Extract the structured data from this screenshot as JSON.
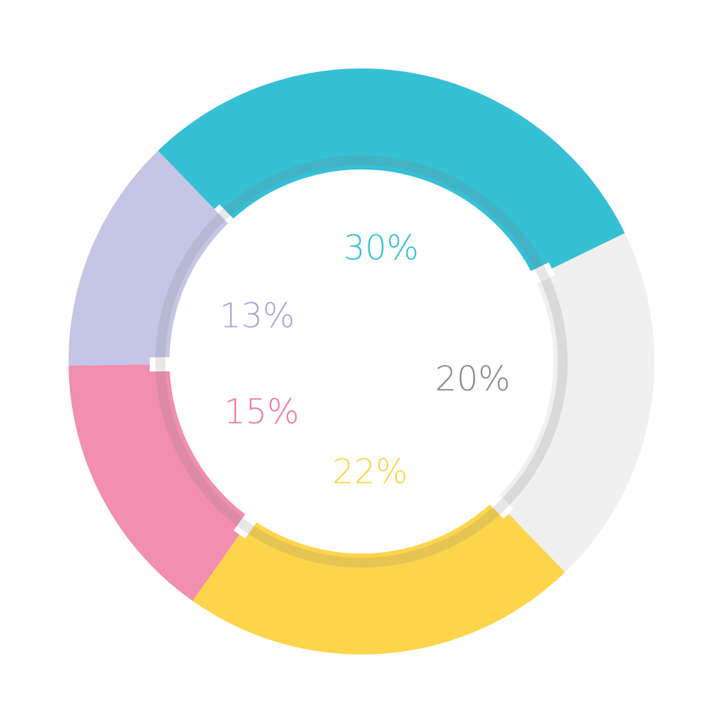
{
  "chart_data": {
    "type": "pie",
    "donut": true,
    "values": [
      30,
      20,
      22,
      15,
      13
    ],
    "value_labels": [
      "30%",
      "20%",
      "22%",
      "15%",
      "13%"
    ],
    "colors": [
      "#35c0d5",
      "#f0f0f0",
      "#fdd54b",
      "#f28eb0",
      "#c5c6e6"
    ],
    "label_colors": [
      "#35c0d5",
      "#8a8a8a",
      "#fdd54b",
      "#f07aa3",
      "#aaa7da"
    ]
  }
}
